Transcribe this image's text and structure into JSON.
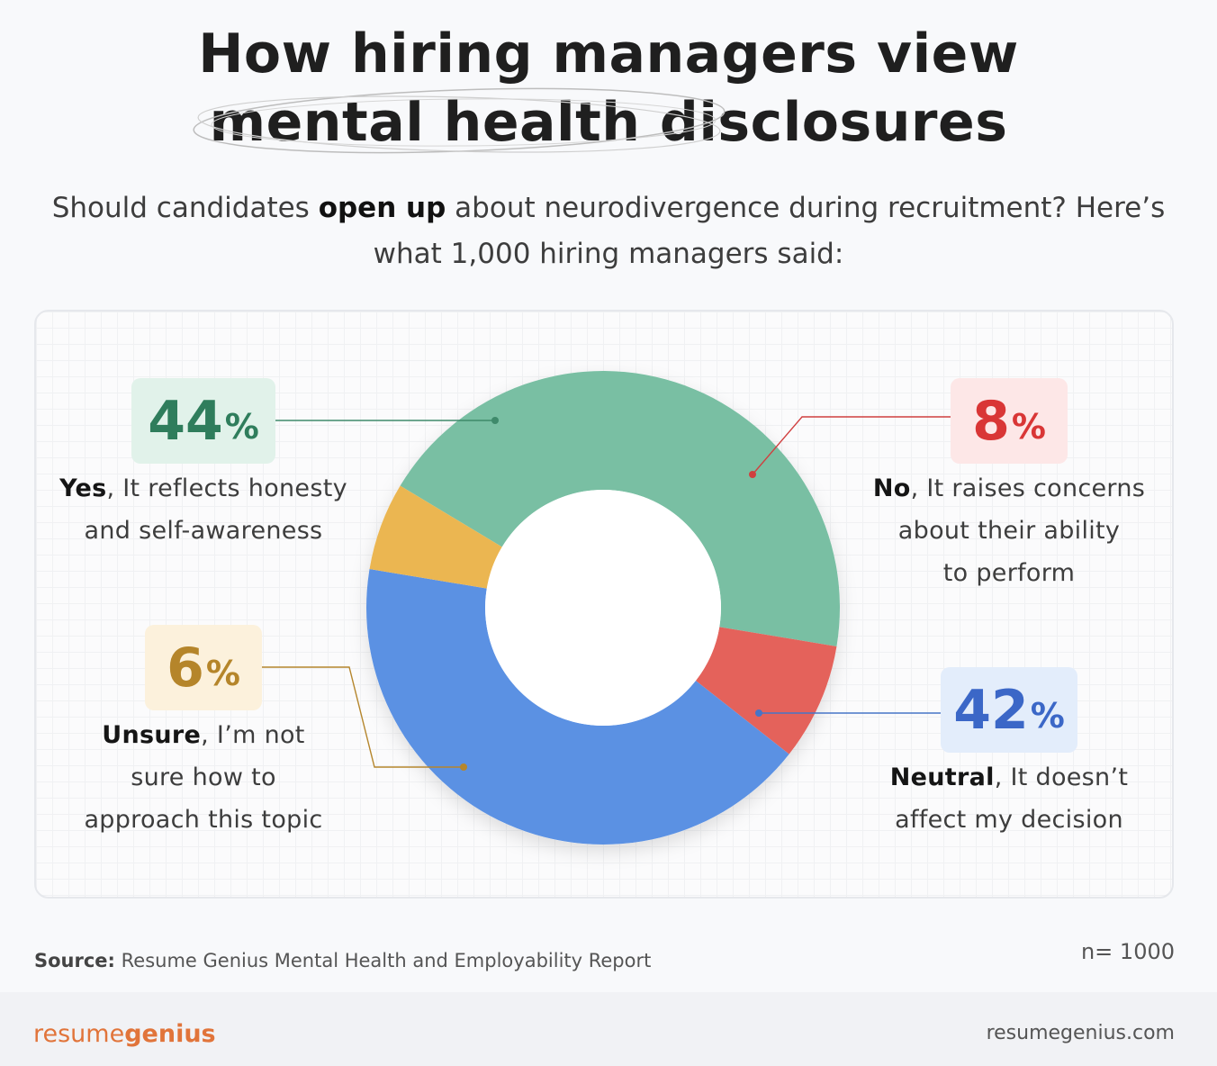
{
  "title": {
    "line1": "How hiring managers view",
    "line2": "mental health disclosures"
  },
  "subtitle": {
    "part1": "Should candidates ",
    "bold": "open up",
    "part2": " about neurodivergence during recruitment? Here’s",
    "line2": "what 1,000 hiring managers said:"
  },
  "chart_data": {
    "type": "pie",
    "donut": true,
    "categories": [
      "Yes",
      "No",
      "Neutral",
      "Unsure"
    ],
    "values": [
      44,
      8,
      42,
      6
    ],
    "unit": "%",
    "colors": [
      "#79bfa3",
      "#e4625b",
      "#5b91e3",
      "#ebb651"
    ],
    "label_colors": [
      "#2f7d5c",
      "#d93636",
      "#3b67c7",
      "#b5852a"
    ],
    "box_colors": [
      "#e1f2ea",
      "#fde7e7",
      "#e3edfb",
      "#fcf1dc"
    ],
    "annotations": [
      {
        "pct": "44",
        "sign": "%",
        "bold": "Yes",
        "rest1": ", It reflects honesty",
        "rest2": "and self-awareness",
        "rest3": ""
      },
      {
        "pct": "8",
        "sign": "%",
        "bold": "No",
        "rest1": ", It raises concerns",
        "rest2": "about their ability",
        "rest3": "to perform"
      },
      {
        "pct": "42",
        "sign": "%",
        "bold": "Neutral",
        "rest1": ", It doesn’t",
        "rest2": "affect my decision",
        "rest3": ""
      },
      {
        "pct": "6",
        "sign": "%",
        "bold": "Unsure",
        "rest1": ", I’m not",
        "rest2": "sure how to",
        "rest3": "approach this topic"
      }
    ]
  },
  "source": {
    "label": "Source:",
    "text": " Resume Genius Mental Health and Employability Report"
  },
  "n_label": "n= 1000",
  "footer": {
    "brand_part1": "resume",
    "brand_part2": "genius",
    "site": "resumegenius.com"
  }
}
